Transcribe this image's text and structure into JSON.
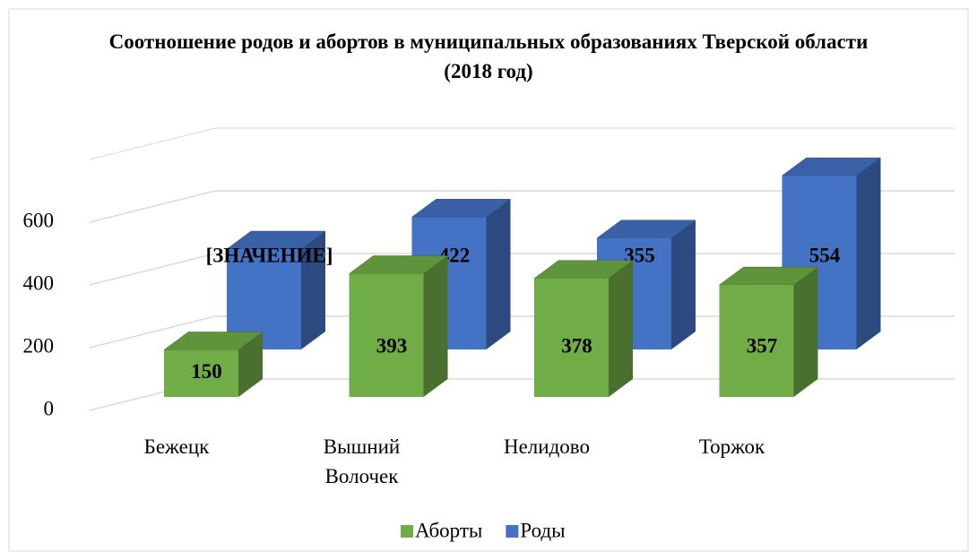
{
  "chart_data": {
    "type": "bar3d",
    "title": "Соотношение родов и абортов в муниципальных образованиях Тверской области (2018 год)",
    "categories": [
      "Бежецк",
      "Вышний Волочек",
      "Нелидово",
      "Торжок"
    ],
    "series": [
      {
        "name": "Аборты",
        "color": "#70ad47",
        "values": [
          150,
          393,
          378,
          357
        ]
      },
      {
        "name": "Роды",
        "color": "#4472c4",
        "values": [
          320,
          422,
          355,
          554
        ],
        "value_labels": [
          "[ЗНАЧЕНИЕ]",
          "422",
          "355",
          "554"
        ]
      }
    ],
    "ylim": [
      0,
      800
    ],
    "yticks": [
      0,
      200,
      400,
      600
    ],
    "grid": true,
    "legend": "bottom"
  }
}
